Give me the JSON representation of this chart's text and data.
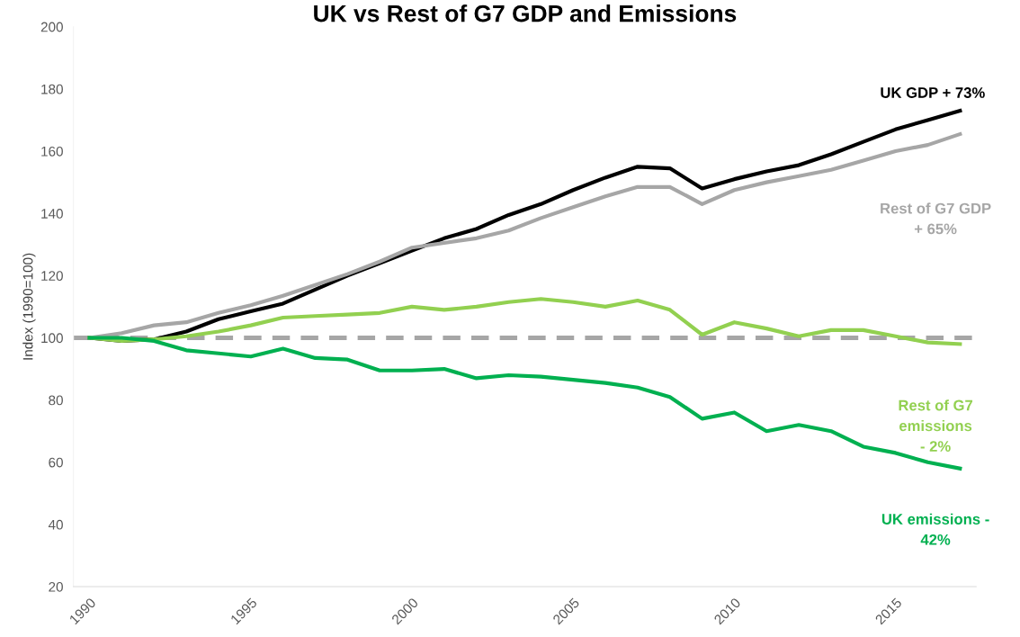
{
  "chart_data": {
    "type": "line",
    "title": "UK vs Rest of G7 GDP and Emissions",
    "ylabel": "Index (1990=100)",
    "x": [
      1990,
      1991,
      1992,
      1993,
      1994,
      1995,
      1996,
      1997,
      1998,
      1999,
      2000,
      2001,
      2002,
      2003,
      2004,
      2005,
      2006,
      2007,
      2008,
      2009,
      2010,
      2011,
      2012,
      2013,
      2014,
      2015,
      2016,
      2017
    ],
    "series": [
      {
        "name": "UK GDP + 73%",
        "color": "#000000",
        "values": [
          100,
          99,
          99.5,
          102,
          106,
          108.5,
          111,
          115.5,
          120,
          124,
          128,
          132,
          135,
          139.5,
          143,
          147.5,
          151.5,
          155,
          154.5,
          148,
          151,
          153.5,
          155.5,
          159,
          163,
          167,
          170,
          173
        ]
      },
      {
        "name": "Rest of G7 GDP\n+ 65%",
        "color": "#a6a6a6",
        "values": [
          100,
          101.5,
          104,
          105,
          108,
          110.5,
          113.5,
          117,
          120.5,
          124.5,
          129,
          130.5,
          132,
          134.5,
          138.5,
          142,
          145.5,
          148.5,
          148.5,
          143,
          147.5,
          150,
          152,
          154,
          157,
          160,
          162,
          165.5
        ]
      },
      {
        "name": "Rest of G7\nemissions\n- 2%",
        "color": "#92d050",
        "values": [
          100,
          99,
          99.5,
          100.5,
          102,
          104,
          106.5,
          107,
          107.5,
          108,
          110,
          109,
          110,
          111.5,
          112.5,
          111.5,
          110,
          112,
          109,
          101,
          105,
          103,
          100.5,
          102.5,
          102.5,
          100.5,
          98.5,
          98
        ]
      },
      {
        "name": "UK emissions -\n42%",
        "color": "#00b050",
        "values": [
          100,
          100,
          99,
          96,
          95,
          94,
          96.5,
          93.5,
          93,
          89.5,
          89.5,
          90,
          87,
          88,
          87.5,
          86.5,
          85.5,
          84,
          81,
          74,
          76,
          70,
          72,
          70,
          65,
          63,
          60,
          58
        ]
      }
    ],
    "ref_lines": [
      {
        "axis": "y",
        "value": 100,
        "color": "#a6a6a6",
        "line_style": "dashed"
      }
    ],
    "xlim": [
      1989.5,
      2017.5
    ],
    "xticks": [
      1990,
      1995,
      2000,
      2005,
      2010,
      2015
    ],
    "ylim": [
      20,
      200
    ],
    "yticks": [
      20,
      40,
      60,
      80,
      100,
      120,
      140,
      160,
      180,
      200
    ],
    "grid": false,
    "legend": false,
    "line_style": "solid",
    "marker": "none"
  }
}
